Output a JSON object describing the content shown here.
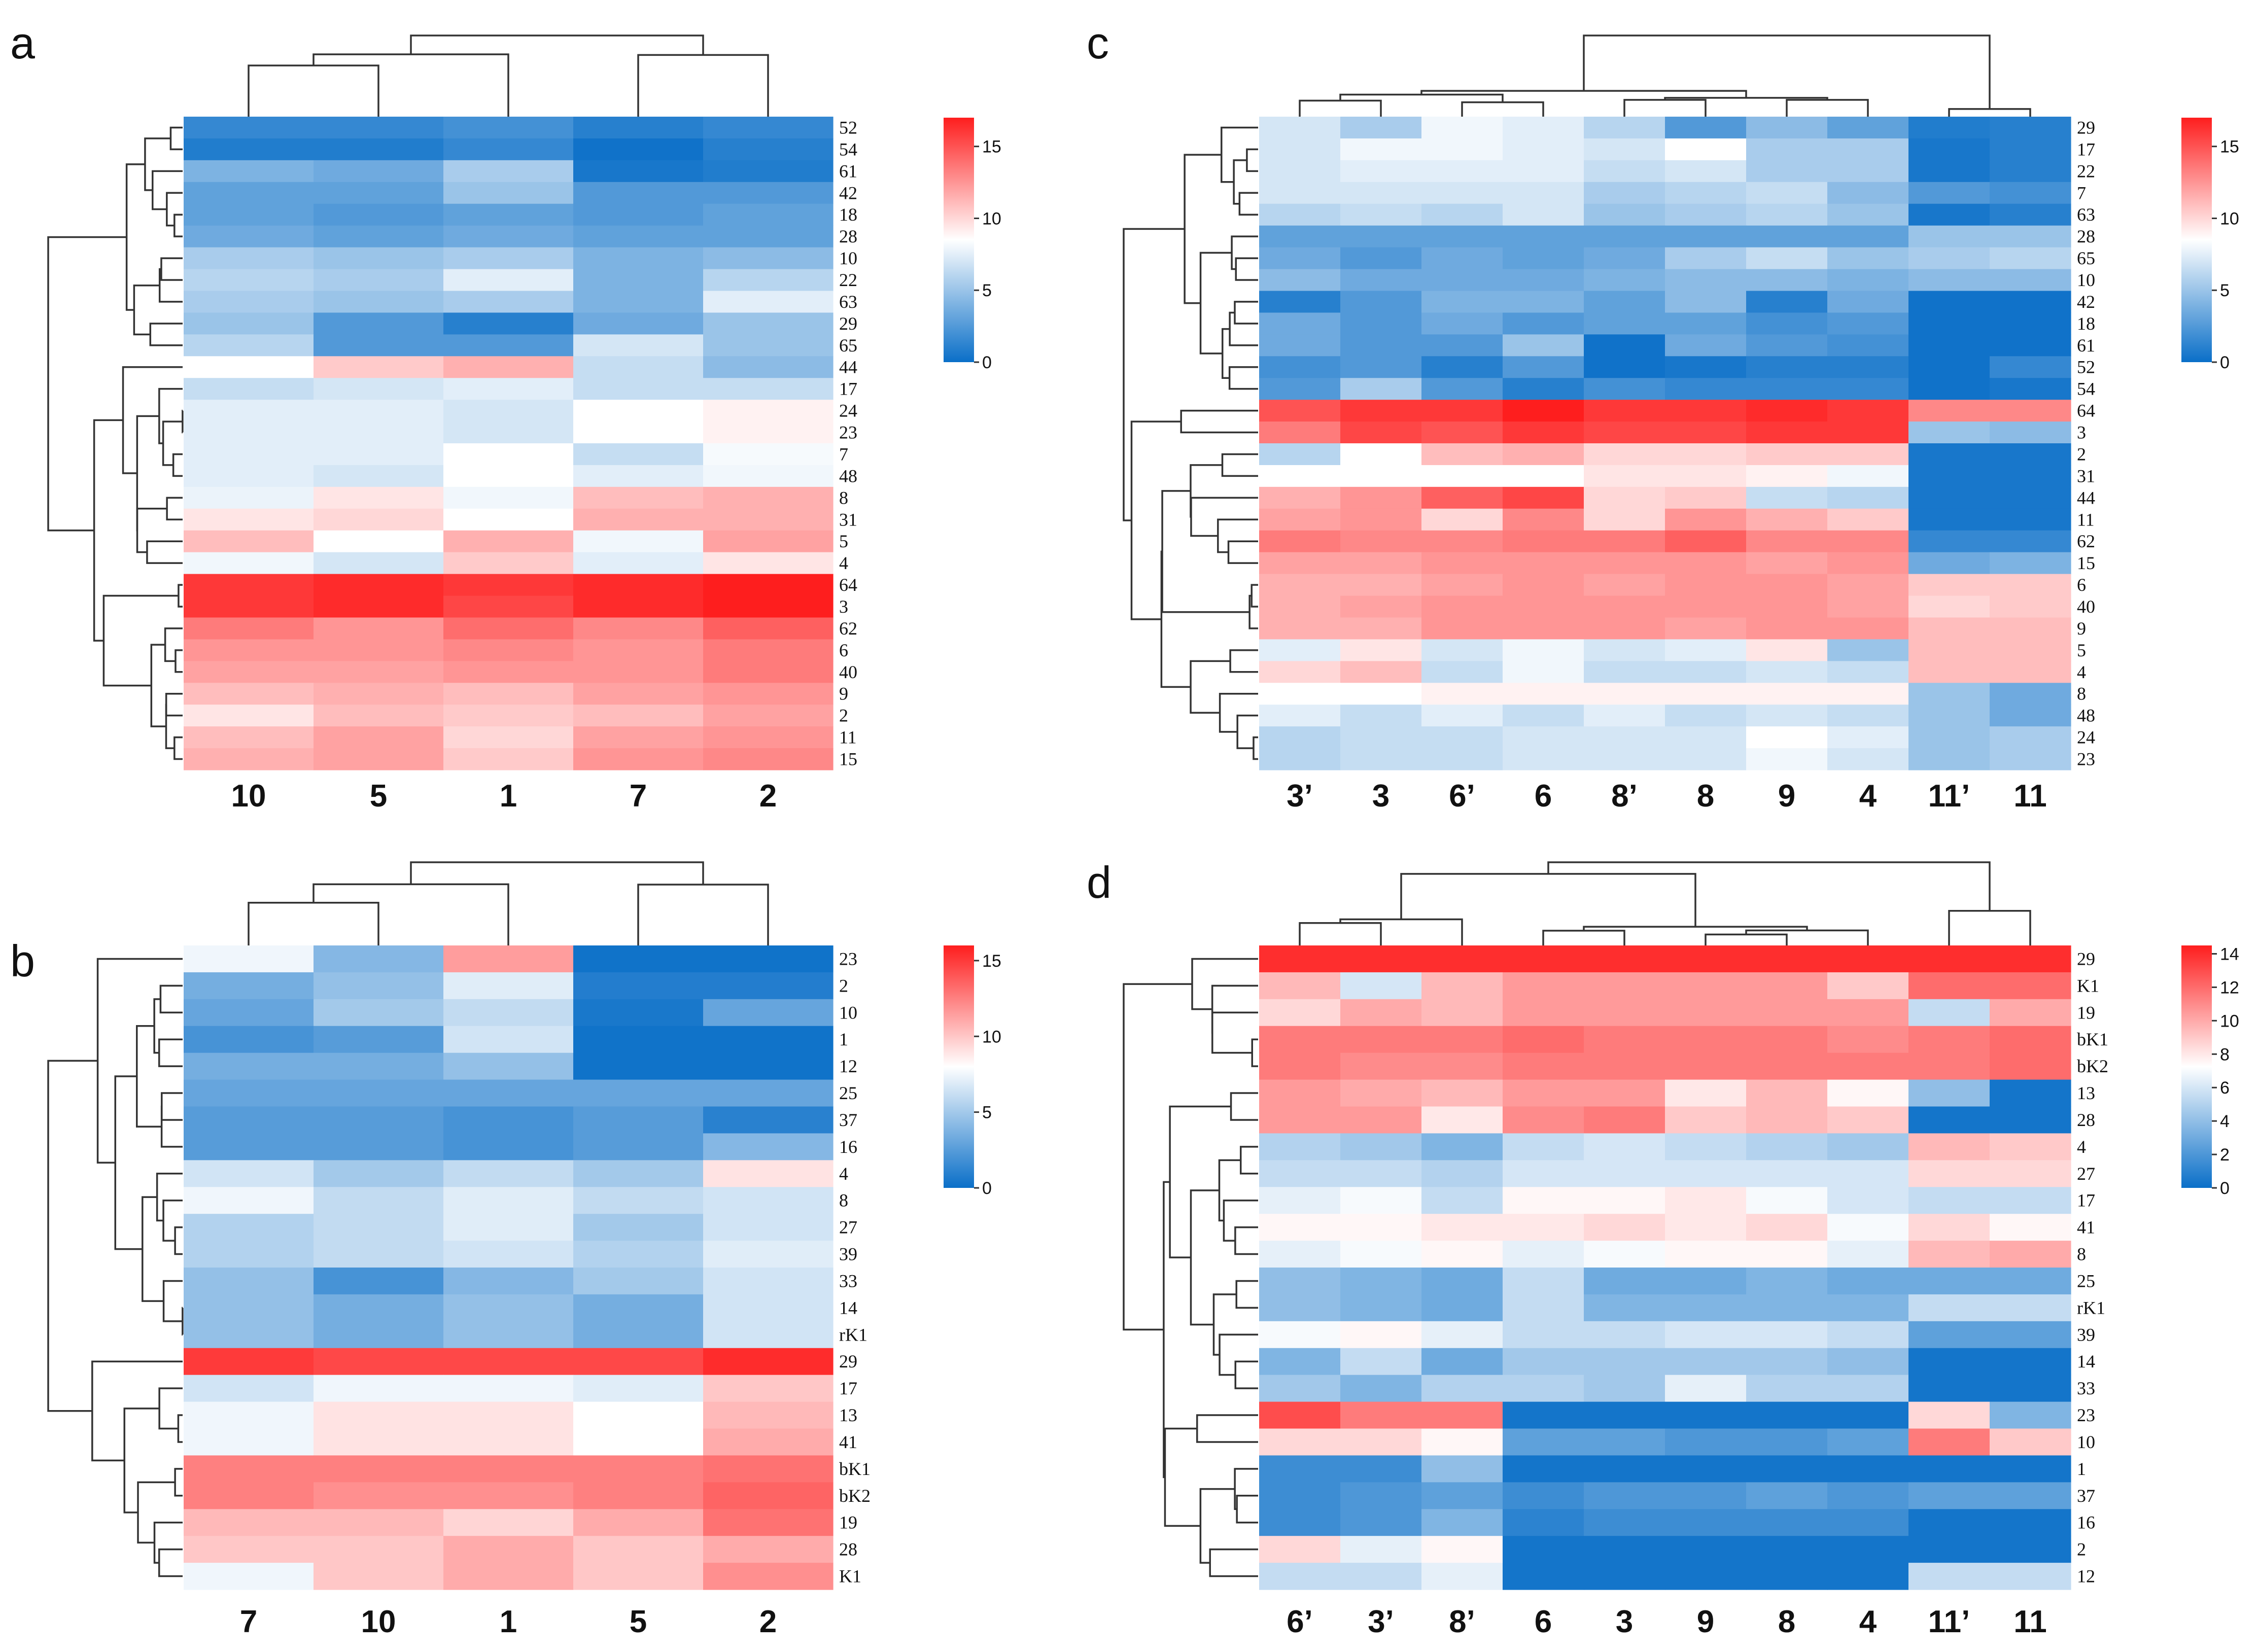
{
  "chart_data": [
    {
      "panel": "a",
      "type": "heatmap",
      "colormap": {
        "low": "#0a6fc8",
        "mid": "#ffffff",
        "high": "#fe1e1e"
      },
      "colorbar": {
        "min": 0,
        "max": 17,
        "ticks": [
          "15",
          "10",
          "5",
          "0"
        ]
      },
      "columns": [
        "10",
        "5",
        "1",
        "7",
        "2"
      ],
      "rows": [
        "52",
        "54",
        "61",
        "42",
        "18",
        "28",
        "10",
        "22",
        "63",
        "29",
        "65",
        "44",
        "17",
        "24",
        "23",
        "7",
        "48",
        "8",
        "31",
        "5",
        "4",
        "64",
        "3",
        "62",
        "6",
        "40",
        "9",
        "2",
        "11",
        "15"
      ],
      "values": [
        [
          1.5,
          1.5,
          2.0,
          1.0,
          1.5
        ],
        [
          0.8,
          0.8,
          1.5,
          0.2,
          1.0
        ],
        [
          4.0,
          3.5,
          5.5,
          0.5,
          0.8
        ],
        [
          3.0,
          3.0,
          5.0,
          2.5,
          2.5
        ],
        [
          3.0,
          2.5,
          3.0,
          2.5,
          3.0
        ],
        [
          3.5,
          3.0,
          3.5,
          3.0,
          3.0
        ],
        [
          5.5,
          5.0,
          5.5,
          4.0,
          4.5
        ],
        [
          6.0,
          5.5,
          7.5,
          4.0,
          6.0
        ],
        [
          5.5,
          5.0,
          5.5,
          4.0,
          7.5
        ],
        [
          5.0,
          2.5,
          1.0,
          3.5,
          5.0
        ],
        [
          6.0,
          2.5,
          2.5,
          7.0,
          5.0
        ],
        [
          8.5,
          10.5,
          11.5,
          6.5,
          4.5
        ],
        [
          6.5,
          7.0,
          7.5,
          6.5,
          6.5
        ],
        [
          7.5,
          7.5,
          7.0,
          8.5,
          9.0
        ],
        [
          7.5,
          7.5,
          7.0,
          8.5,
          9.0
        ],
        [
          7.5,
          7.5,
          8.5,
          6.5,
          8.2
        ],
        [
          7.5,
          7.0,
          8.5,
          7.5,
          8.0
        ],
        [
          7.8,
          9.5,
          8.0,
          11.0,
          11.5
        ],
        [
          9.5,
          10.0,
          8.5,
          11.5,
          11.5
        ],
        [
          11.0,
          8.5,
          11.5,
          8.0,
          12.0
        ],
        [
          8.0,
          7.0,
          10.5,
          7.5,
          9.5
        ],
        [
          16.0,
          16.5,
          16.0,
          16.5,
          17.0
        ],
        [
          16.0,
          16.5,
          15.5,
          16.5,
          17.0
        ],
        [
          13.5,
          12.5,
          14.0,
          13.0,
          14.5
        ],
        [
          12.5,
          12.5,
          13.0,
          12.5,
          13.5
        ],
        [
          12.0,
          12.0,
          12.5,
          12.5,
          13.5
        ],
        [
          11.0,
          11.5,
          11.0,
          12.0,
          12.5
        ],
        [
          9.5,
          11.0,
          10.5,
          11.0,
          12.0
        ],
        [
          11.0,
          12.0,
          10.0,
          12.0,
          12.5
        ],
        [
          11.5,
          12.0,
          10.5,
          12.5,
          13.0
        ]
      ]
    },
    {
      "panel": "b",
      "type": "heatmap",
      "colormap": {
        "low": "#0a6fc8",
        "mid": "#ffffff",
        "high": "#fe1e1e"
      },
      "colorbar": {
        "min": 0,
        "max": 16,
        "ticks": [
          "15",
          "10",
          "5",
          "0"
        ]
      },
      "columns": [
        "7",
        "10",
        "1",
        "5",
        "2"
      ],
      "rows": [
        "23",
        "2",
        "10",
        "1",
        "12",
        "25",
        "37",
        "16",
        "4",
        "8",
        "27",
        "39",
        "33",
        "14",
        "rK1",
        "29",
        "17",
        "13",
        "41",
        "bK1",
        "bK2",
        "19",
        "28",
        "K1"
      ],
      "values": [
        [
          7.5,
          4.0,
          11.5,
          0.2,
          0.2
        ],
        [
          3.5,
          4.5,
          7.0,
          0.8,
          0.8
        ],
        [
          3.0,
          5.0,
          6.0,
          0.5,
          3.0
        ],
        [
          2.0,
          2.5,
          6.5,
          0.2,
          0.2
        ],
        [
          3.5,
          3.5,
          4.5,
          0.2,
          0.2
        ],
        [
          3.0,
          3.0,
          3.0,
          3.0,
          3.0
        ],
        [
          2.5,
          2.5,
          2.0,
          2.5,
          1.0
        ],
        [
          2.5,
          2.5,
          2.0,
          2.5,
          4.0
        ],
        [
          6.5,
          5.0,
          6.0,
          5.0,
          9.0
        ],
        [
          7.5,
          6.0,
          7.0,
          6.0,
          6.5
        ],
        [
          5.5,
          6.0,
          7.0,
          5.0,
          6.5
        ],
        [
          5.5,
          6.0,
          6.5,
          5.5,
          7.0
        ],
        [
          4.5,
          2.0,
          4.0,
          5.0,
          6.5
        ],
        [
          4.5,
          3.5,
          4.5,
          3.5,
          6.5
        ],
        [
          4.5,
          3.5,
          4.5,
          3.5,
          6.5
        ],
        [
          15.0,
          14.5,
          14.5,
          14.5,
          15.5
        ],
        [
          6.5,
          7.5,
          7.5,
          7.0,
          10.0
        ],
        [
          7.5,
          9.0,
          9.0,
          8.0,
          10.5
        ],
        [
          7.5,
          9.0,
          9.0,
          8.0,
          11.0
        ],
        [
          12.5,
          12.5,
          12.5,
          12.5,
          13.0
        ],
        [
          12.5,
          12.0,
          12.0,
          12.5,
          13.5
        ],
        [
          10.5,
          10.5,
          9.5,
          11.0,
          13.0
        ],
        [
          10.0,
          10.0,
          11.0,
          10.0,
          11.0
        ],
        [
          7.5,
          10.0,
          11.0,
          10.0,
          12.0
        ]
      ]
    },
    {
      "panel": "c",
      "type": "heatmap",
      "colormap": {
        "low": "#0a6fc8",
        "mid": "#ffffff",
        "high": "#fe1e1e"
      },
      "colorbar": {
        "min": 0,
        "max": 17,
        "ticks": [
          "15",
          "10",
          "5",
          "0"
        ]
      },
      "columns": [
        "3’",
        "3",
        "6’",
        "6",
        "8’",
        "8",
        "9",
        "4",
        "11’",
        "11"
      ],
      "rows": [
        "29",
        "17",
        "22",
        "7",
        "63",
        "28",
        "65",
        "10",
        "42",
        "18",
        "61",
        "52",
        "54",
        "64",
        "3",
        "2",
        "31",
        "44",
        "11",
        "62",
        "15",
        "6",
        "40",
        "9",
        "5",
        "4",
        "8",
        "48",
        "24",
        "23"
      ],
      "values": [
        [
          7.0,
          5.5,
          8.0,
          7.5,
          6.0,
          2.5,
          4.5,
          3.0,
          0.8,
          1.0
        ],
        [
          7.0,
          8.0,
          8.0,
          7.5,
          7.0,
          8.5,
          5.5,
          5.5,
          0.5,
          1.0
        ],
        [
          7.0,
          7.5,
          7.5,
          7.5,
          6.5,
          7.0,
          5.5,
          5.5,
          0.5,
          1.0
        ],
        [
          7.0,
          7.0,
          7.0,
          7.0,
          5.5,
          6.0,
          6.5,
          4.5,
          2.5,
          2.0
        ],
        [
          6.0,
          6.5,
          6.0,
          7.0,
          5.0,
          5.5,
          6.0,
          5.0,
          0.5,
          1.0
        ],
        [
          3.0,
          3.0,
          3.0,
          3.0,
          3.0,
          3.0,
          3.0,
          3.0,
          5.0,
          5.0
        ],
        [
          3.5,
          2.5,
          3.5,
          3.0,
          3.5,
          5.5,
          6.5,
          5.0,
          5.5,
          6.0
        ],
        [
          4.5,
          3.5,
          3.5,
          3.5,
          4.0,
          4.5,
          4.5,
          4.0,
          4.5,
          4.5
        ],
        [
          1.0,
          2.5,
          4.0,
          4.0,
          3.0,
          4.5,
          1.0,
          3.5,
          0.2,
          0.2
        ],
        [
          3.5,
          2.5,
          3.5,
          2.5,
          3.0,
          3.0,
          2.0,
          2.5,
          0.2,
          0.2
        ],
        [
          3.5,
          2.5,
          2.5,
          5.0,
          0.2,
          3.5,
          2.5,
          2.0,
          0.2,
          0.2
        ],
        [
          2.0,
          2.5,
          1.0,
          2.5,
          0.2,
          0.5,
          1.0,
          1.0,
          0.2,
          1.5
        ],
        [
          2.5,
          5.5,
          2.5,
          1.0,
          2.0,
          1.5,
          1.5,
          1.5,
          0.2,
          0.5
        ],
        [
          15.0,
          16.0,
          16.0,
          17.0,
          16.0,
          16.0,
          16.5,
          16.0,
          13.0,
          13.0
        ],
        [
          13.5,
          15.5,
          15.0,
          16.0,
          15.5,
          15.5,
          16.0,
          16.0,
          5.0,
          4.5
        ],
        [
          6.0,
          8.5,
          11.0,
          11.5,
          10.0,
          10.0,
          10.5,
          10.5,
          0.5,
          0.5
        ],
        [
          8.5,
          8.5,
          8.5,
          8.5,
          9.5,
          9.5,
          9.0,
          8.0,
          0.5,
          0.5
        ],
        [
          11.5,
          12.5,
          14.5,
          15.5,
          10.0,
          10.5,
          6.5,
          6.0,
          0.5,
          0.5
        ],
        [
          12.0,
          12.5,
          10.0,
          13.0,
          10.0,
          12.5,
          11.5,
          10.5,
          0.5,
          0.5
        ],
        [
          13.5,
          13.0,
          13.0,
          13.5,
          13.5,
          14.5,
          13.0,
          13.0,
          1.5,
          1.5
        ],
        [
          12.0,
          12.0,
          12.5,
          12.5,
          12.5,
          12.5,
          12.0,
          12.5,
          3.5,
          4.0
        ],
        [
          11.5,
          11.5,
          12.0,
          12.5,
          12.0,
          12.5,
          12.5,
          12.0,
          10.5,
          10.5
        ],
        [
          11.5,
          12.0,
          12.5,
          12.5,
          12.5,
          12.5,
          12.5,
          12.0,
          10.0,
          10.5
        ],
        [
          11.5,
          11.5,
          12.5,
          12.5,
          12.5,
          12.0,
          12.5,
          12.5,
          11.0,
          11.0
        ],
        [
          7.5,
          9.5,
          7.0,
          8.0,
          7.0,
          7.5,
          9.5,
          5.0,
          11.0,
          11.0
        ],
        [
          10.0,
          11.0,
          6.5,
          8.0,
          6.5,
          6.5,
          7.0,
          6.5,
          11.0,
          11.0
        ],
        [
          8.5,
          8.5,
          9.0,
          9.0,
          9.0,
          9.0,
          9.0,
          9.0,
          5.0,
          3.5
        ],
        [
          7.5,
          6.5,
          7.5,
          6.5,
          7.5,
          6.5,
          7.0,
          6.5,
          5.0,
          3.5
        ],
        [
          6.0,
          6.5,
          6.5,
          7.0,
          7.0,
          7.0,
          8.5,
          7.5,
          5.0,
          5.5
        ],
        [
          6.0,
          6.5,
          6.5,
          7.0,
          7.0,
          7.0,
          8.0,
          7.0,
          5.0,
          5.5
        ]
      ]
    },
    {
      "panel": "d",
      "type": "heatmap",
      "colormap": {
        "low": "#0a6fc8",
        "mid": "#ffffff",
        "high": "#fe1e1e"
      },
      "colorbar": {
        "min": 0,
        "max": 14.5,
        "ticks": [
          "14",
          "12",
          "10",
          "8",
          "6",
          "4",
          "2",
          "0"
        ]
      },
      "columns": [
        "6’",
        "3’",
        "8’",
        "6",
        "3",
        "9",
        "8",
        "4",
        "11’",
        "11"
      ],
      "rows": [
        "29",
        "K1",
        "19",
        "bK1",
        "bK2",
        "13",
        "28",
        "4",
        "27",
        "17",
        "41",
        "8",
        "25",
        "rK1",
        "39",
        "14",
        "33",
        "23",
        "10",
        "1",
        "37",
        "16",
        "2",
        "12"
      ],
      "values": [
        [
          14.0,
          14.0,
          14.0,
          14.0,
          14.0,
          14.0,
          14.0,
          14.0,
          14.0,
          14.0
        ],
        [
          9.5,
          6.0,
          9.5,
          10.5,
          10.5,
          10.5,
          10.5,
          9.0,
          12.0,
          12.0
        ],
        [
          8.5,
          10.0,
          9.5,
          10.5,
          10.5,
          10.5,
          10.5,
          10.5,
          5.5,
          10.0
        ],
        [
          11.5,
          11.5,
          11.5,
          12.0,
          11.5,
          11.5,
          11.5,
          11.0,
          11.5,
          12.0
        ],
        [
          11.5,
          11.0,
          11.0,
          11.5,
          11.5,
          11.5,
          11.5,
          11.5,
          11.5,
          12.0
        ],
        [
          10.5,
          10.0,
          9.5,
          10.5,
          10.5,
          8.0,
          9.5,
          7.5,
          4.0,
          0.3
        ],
        [
          10.5,
          10.5,
          8.0,
          11.0,
          11.5,
          9.0,
          9.5,
          9.0,
          0.3,
          0.3
        ],
        [
          5.0,
          4.5,
          3.5,
          5.5,
          6.0,
          5.5,
          5.0,
          4.5,
          9.5,
          9.0
        ],
        [
          5.5,
          5.5,
          5.0,
          6.0,
          6.0,
          6.0,
          6.0,
          6.0,
          8.5,
          8.5
        ],
        [
          6.5,
          7.0,
          5.5,
          7.5,
          7.5,
          8.0,
          7.0,
          6.0,
          5.5,
          5.5
        ],
        [
          7.5,
          7.5,
          8.0,
          8.0,
          8.5,
          8.0,
          8.5,
          7.0,
          8.5,
          7.5
        ],
        [
          6.5,
          7.0,
          7.5,
          6.5,
          7.0,
          7.5,
          7.5,
          6.5,
          9.5,
          10.0
        ],
        [
          4.0,
          3.5,
          3.0,
          5.5,
          3.0,
          3.0,
          3.5,
          3.0,
          3.0,
          3.0
        ],
        [
          4.0,
          3.5,
          3.0,
          5.5,
          3.5,
          3.5,
          3.5,
          3.5,
          5.5,
          5.5
        ],
        [
          7.0,
          7.5,
          6.5,
          5.5,
          5.5,
          6.0,
          6.0,
          5.5,
          2.5,
          2.5
        ],
        [
          3.5,
          5.5,
          3.0,
          4.5,
          4.5,
          4.5,
          4.5,
          4.0,
          0.3,
          0.3
        ],
        [
          4.5,
          3.5,
          5.0,
          5.0,
          4.5,
          6.5,
          5.0,
          5.0,
          0.3,
          0.3
        ],
        [
          13.0,
          11.5,
          11.5,
          0.3,
          0.3,
          0.3,
          0.3,
          0.3,
          8.5,
          3.5
        ],
        [
          8.5,
          8.5,
          7.5,
          2.5,
          2.5,
          2.0,
          2.0,
          2.5,
          11.5,
          9.0
        ],
        [
          1.5,
          1.5,
          4.0,
          0.3,
          0.3,
          0.3,
          0.3,
          0.3,
          0.3,
          0.3
        ],
        [
          1.5,
          2.0,
          2.5,
          1.5,
          2.0,
          2.0,
          2.5,
          2.0,
          2.5,
          2.5
        ],
        [
          1.5,
          2.0,
          3.5,
          1.0,
          1.5,
          1.5,
          1.5,
          1.5,
          0.3,
          0.3
        ],
        [
          8.5,
          6.5,
          7.5,
          0.3,
          0.3,
          0.3,
          0.3,
          0.3,
          0.3,
          0.3
        ],
        [
          5.5,
          5.5,
          6.5,
          0.3,
          0.3,
          0.3,
          0.3,
          0.3,
          5.5,
          5.5
        ]
      ]
    }
  ]
}
